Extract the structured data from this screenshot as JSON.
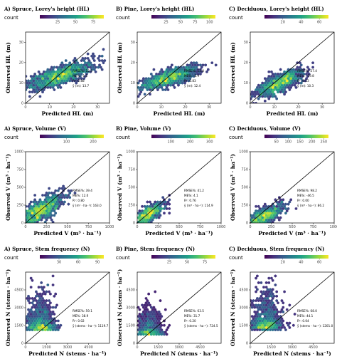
{
  "colormap": [
    "#440154",
    "#46327e",
    "#365c8d",
    "#277f8e",
    "#1fa187",
    "#4ac16d",
    "#a0da39",
    "#fde725"
  ],
  "legend_name": "count",
  "chart_data": [
    {
      "type": "scatter",
      "panel": "hl-spruce",
      "title": "A) Spruce, Lorey's height (HL)",
      "xlabel": "Predicted HL (m)",
      "ylabel": "Observed HL (m)",
      "xlim": [
        0,
        35
      ],
      "ylim": [
        0,
        35
      ],
      "xticks": [
        "0",
        "10",
        "20",
        "30"
      ],
      "yticks": [
        "0",
        "10",
        "20",
        "30"
      ],
      "colorbar": {
        "ticks": [
          "25",
          "50",
          "75"
        ],
        "max": 90
      },
      "stats": [
        "RMSE%: 12.3",
        "ME%: -1.5",
        "R²: 0.88",
        "ȳ (m): 13.7"
      ],
      "cloud": {
        "xc": 13.7,
        "yc": 13.5,
        "rx": 7,
        "ry": 3.5,
        "peak": 85
      }
    },
    {
      "type": "scatter",
      "panel": "hl-pine",
      "title": "B) Pine, Lorey's height (HL)",
      "xlabel": "Predicted HL (m)",
      "ylabel": "Observed HL (m)",
      "xlim": [
        0,
        35
      ],
      "ylim": [
        0,
        35
      ],
      "xticks": [
        "0",
        "10",
        "20",
        "30"
      ],
      "yticks": [
        "0",
        "10",
        "20",
        "30"
      ],
      "colorbar": {
        "ticks": [
          "25",
          "50",
          "75",
          "100"
        ],
        "max": 110
      },
      "stats": [
        "RMSE%: 13.8",
        "ME%: -5.9",
        "R²: 0.83",
        "ȳ (m): 12.4"
      ],
      "cloud": {
        "xc": 12.8,
        "yc": 12.4,
        "rx": 6,
        "ry": 3,
        "peak": 105
      }
    },
    {
      "type": "scatter",
      "panel": "hl-deciduous",
      "title": "C) Deciduous, Lorey's height (HL)",
      "xlabel": "Predicted HL (m)",
      "ylabel": "Observed HL (m)",
      "xlim": [
        0,
        35
      ],
      "ylim": [
        0,
        35
      ],
      "xticks": [
        "0",
        "10",
        "20",
        "30"
      ],
      "yticks": [
        "0",
        "10",
        "20",
        "30"
      ],
      "colorbar": {
        "ticks": [
          "20",
          "40",
          "60"
        ],
        "max": 70
      },
      "stats": [
        "RMSE%: 27.4",
        "ME%: -19.8",
        "R²: 0.53",
        "ȳ (m): 10.3"
      ],
      "cloud": {
        "xc": 12,
        "yc": 10,
        "rx": 5,
        "ry": 3.5,
        "peak": 65
      }
    },
    {
      "type": "scatter",
      "panel": "v-spruce",
      "title": "A) Spruce, Volume (V)",
      "xlabel": "Predicted V (m³ · ha⁻¹)",
      "ylabel": "Observed V (m³ · ha⁻¹)",
      "xlim": [
        0,
        1000
      ],
      "ylim": [
        0,
        1000
      ],
      "xticks": [
        "0",
        "250",
        "500",
        "750",
        "1000"
      ],
      "yticks": [
        "0",
        "250",
        "500",
        "750",
        "1000"
      ],
      "colorbar": {
        "ticks": [
          "100",
          "200"
        ],
        "max": 240
      },
      "stats": [
        "RMSE%: 39.4",
        "ME%: 12.0",
        "R²: 0.80",
        "ȳ (m³ · ha⁻¹): 163.0"
      ],
      "cloud": {
        "xc": 160,
        "yc": 165,
        "rx": 140,
        "ry": 120,
        "peak": 230
      }
    },
    {
      "type": "scatter",
      "panel": "v-pine",
      "title": "B) Pine, Volume (V)",
      "xlabel": "Predicted V (m³ · ha⁻¹)",
      "ylabel": "Observed V (m³ · ha⁻¹)",
      "xlim": [
        0,
        1000
      ],
      "ylim": [
        0,
        1000
      ],
      "xticks": [
        "0",
        "250",
        "500",
        "750",
        "1000"
      ],
      "yticks": [
        "0",
        "250",
        "500",
        "750",
        "1000"
      ],
      "colorbar": {
        "ticks": [
          "100",
          "200",
          "300"
        ],
        "max": 330
      },
      "stats": [
        "RMSE%: 41.2",
        "ME%: 4.1",
        "R²: 0.76",
        "ȳ (m³ · ha⁻¹): 114.9"
      ],
      "cloud": {
        "xc": 115,
        "yc": 115,
        "rx": 90,
        "ry": 80,
        "peak": 320
      }
    },
    {
      "type": "scatter",
      "panel": "v-deciduous",
      "title": "C) Deciduous, Volume (V)",
      "xlabel": "Predicted V (m³ · ha⁻¹)",
      "ylabel": "Observed V (m³ · ha⁻¹)",
      "xlim": [
        0,
        1000
      ],
      "ylim": [
        0,
        1000
      ],
      "xticks": [
        "0",
        "250",
        "500",
        "750",
        "1000"
      ],
      "yticks": [
        "0",
        "250",
        "500",
        "750",
        "1000"
      ],
      "colorbar": {
        "ticks": [
          "50",
          "100",
          "150",
          "200",
          "250"
        ],
        "max": 270
      },
      "stats": [
        "RMSE%: 98.2",
        "ME%: -46.5",
        "R²: 0.00",
        "ȳ (m³ · ha⁻¹): 86.2"
      ],
      "cloud": {
        "xc": 150,
        "yc": 90,
        "rx": 120,
        "ry": 80,
        "peak": 260
      }
    },
    {
      "type": "scatter",
      "panel": "n-spruce",
      "title": "A) Spruce, Stem frequency (N)",
      "xlabel": "Predicted N (stems · ha⁻¹)",
      "ylabel": "Observed N (stems · ha⁻¹)",
      "xlim": [
        0,
        6000
      ],
      "ylim": [
        0,
        6000
      ],
      "xticks": [
        "0",
        "1500",
        "3000",
        "4500"
      ],
      "yticks": [
        "0",
        "1500",
        "3000",
        "4500"
      ],
      "colorbar": {
        "ticks": [
          "30",
          "60",
          "90"
        ],
        "max": 100
      },
      "stats": [
        "RMSE%: 59.1",
        "ME%: 38.9",
        "R²: 0.02",
        "ȳ (stems · ha⁻¹): 1119.7"
      ],
      "cloud": {
        "xc": 1000,
        "yc": 1100,
        "rx": 500,
        "ry": 1100,
        "peak": 95
      }
    },
    {
      "type": "scatter",
      "panel": "n-pine",
      "title": "B) Pine, Stem frequency (N)",
      "xlabel": "Predicted N (stems · ha⁻¹)",
      "ylabel": "Observed N (stems · ha⁻¹)",
      "xlim": [
        0,
        6000
      ],
      "ylim": [
        0,
        6000
      ],
      "xticks": [
        "0",
        "1500",
        "3000",
        "4500"
      ],
      "yticks": [
        "0",
        "1500",
        "3000",
        "4500"
      ],
      "colorbar": {
        "ticks": [
          "25",
          "50",
          "75"
        ],
        "max": 90
      },
      "stats": [
        "RMSE%: 63.5",
        "ME%: 31.7",
        "R²: 0.20",
        "ȳ (stems · ha⁻¹): 724.5"
      ],
      "cloud": {
        "xc": 800,
        "yc": 700,
        "rx": 450,
        "ry": 800,
        "peak": 85
      }
    },
    {
      "type": "scatter",
      "panel": "n-deciduous",
      "title": "C) Deciduous, Stem frequency (N)",
      "xlabel": "Predicted N (stems · ha⁻¹)",
      "ylabel": "Observed N (stems · ha⁻¹)",
      "xlim": [
        0,
        6000
      ],
      "ylim": [
        0,
        6000
      ],
      "xticks": [
        "0",
        "1500",
        "3000",
        "4500"
      ],
      "yticks": [
        "0",
        "1500",
        "3000",
        "4500"
      ],
      "colorbar": {
        "ticks": [
          "20",
          "40",
          "60"
        ],
        "max": 70
      },
      "stats": [
        "RMSE%: 68.0",
        "ME%: 44.1",
        "R²: 0.04",
        "ȳ (stems · ha⁻¹): 1201.0"
      ],
      "cloud": {
        "xc": 1100,
        "yc": 1200,
        "rx": 550,
        "ry": 1200,
        "peak": 65
      }
    }
  ]
}
